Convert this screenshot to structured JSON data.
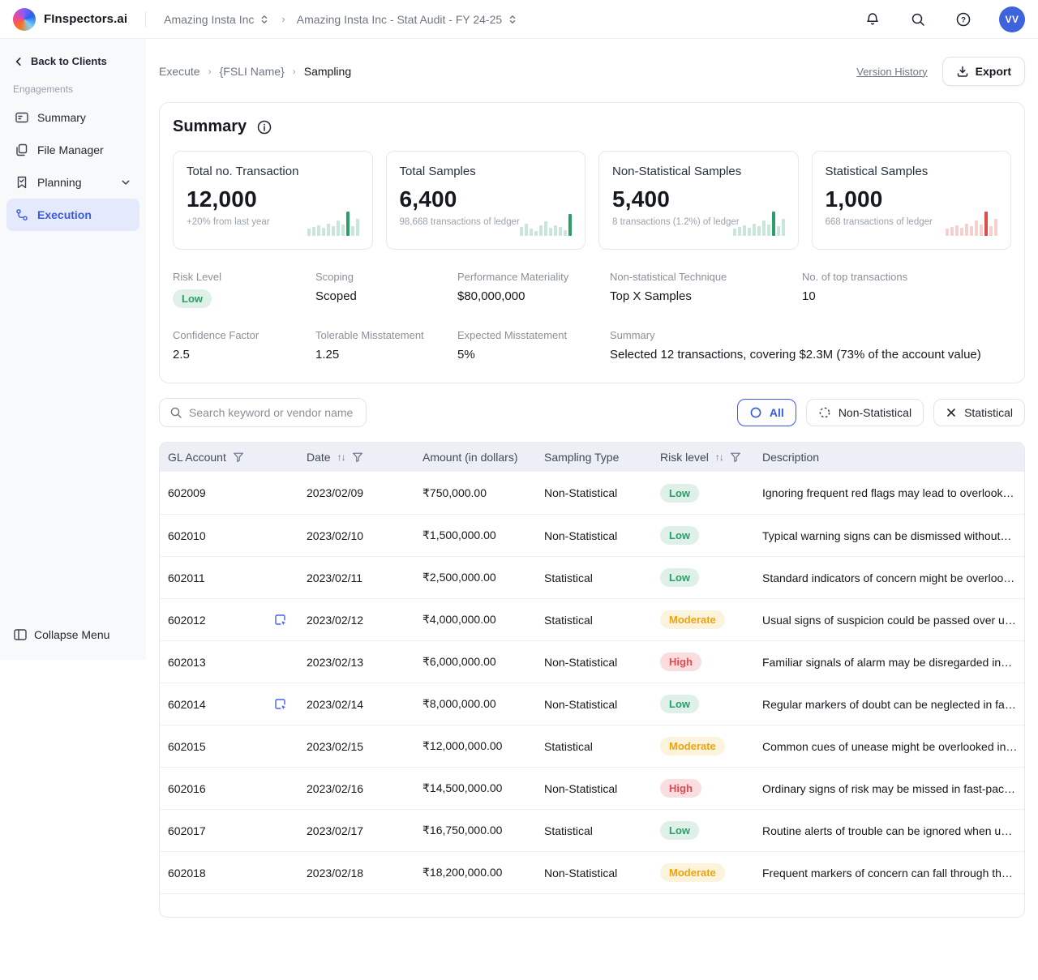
{
  "topbar": {
    "brand": "FInspectors.ai",
    "client": "Amazing Insta Inc",
    "engagement": "Amazing Insta Inc - Stat Audit - FY 24-25",
    "avatar": "VV"
  },
  "sidebar": {
    "back": "Back to Clients",
    "section": "Engagements",
    "items": [
      {
        "label": "Summary"
      },
      {
        "label": "File Manager"
      },
      {
        "label": "Planning"
      },
      {
        "label": "Execution"
      }
    ],
    "collapse": "Collapse Menu"
  },
  "page": {
    "breadcrumb": {
      "level1": "Execute",
      "level2": "{FSLI Name}",
      "level3": "Sampling"
    },
    "version_history": "Version History",
    "export": "Export"
  },
  "summary": {
    "title": "Summary",
    "cards": [
      {
        "title": "Total no. Transaction",
        "value": "12,000",
        "subtext": "+20% from last year",
        "spark": {
          "values": [
            9,
            11,
            13,
            10,
            15,
            12,
            19,
            14,
            30,
            12,
            21
          ],
          "highlight_index": 8,
          "bar_color": "#C9E7D8",
          "highlight_color": "#2E9E68"
        }
      },
      {
        "title": "Total Samples",
        "value": "6,400",
        "subtext": "98,668 transactions of ledger",
        "spark": {
          "values": [
            11,
            15,
            9,
            6,
            13,
            18,
            10,
            13,
            11,
            7,
            27
          ],
          "highlight_index": 10,
          "bar_color": "#C9E7D8",
          "highlight_color": "#2E9E68"
        }
      },
      {
        "title": "Non-Statistical Samples",
        "value": "5,400",
        "subtext": "8 transactions (1.2%) of ledger",
        "spark": {
          "values": [
            9,
            11,
            13,
            10,
            15,
            12,
            19,
            14,
            30,
            12,
            21
          ],
          "highlight_index": 8,
          "bar_color": "#C9E7D8",
          "highlight_color": "#2E9E68"
        }
      },
      {
        "title": "Statistical Samples",
        "value": "1,000",
        "subtext": "668 transactions of ledger",
        "spark": {
          "values": [
            9,
            11,
            13,
            10,
            15,
            12,
            19,
            14,
            30,
            12,
            21
          ],
          "highlight_index": 8,
          "bar_color": "#F6CFCF",
          "highlight_color": "#E04B4B"
        }
      }
    ],
    "stats": [
      {
        "label": "Risk Level",
        "value": "Low",
        "badge": "low"
      },
      {
        "label": "Scoping",
        "value": "Scoped"
      },
      {
        "label": "Performance Materiality",
        "value": "$80,000,000"
      },
      {
        "label": "Non-statistical Technique",
        "value": "Top X Samples"
      },
      {
        "label": "No. of top transactions",
        "value": "10"
      },
      {
        "label": "Confidence Factor",
        "value": "2.5"
      },
      {
        "label": "Tolerable Misstatement",
        "value": "1.25"
      },
      {
        "label": "Expected Misstatement",
        "value": "5%"
      },
      {
        "label": "Summary",
        "value": "Selected 12 transactions, covering $2.3M (73% of the account value)"
      }
    ]
  },
  "filters": {
    "search_placeholder": "Search keyword or vendor name",
    "options": [
      {
        "label": "All",
        "active": true
      },
      {
        "label": "Non-Statistical",
        "active": false
      },
      {
        "label": "Statistical",
        "active": false
      }
    ]
  },
  "table": {
    "columns": [
      "GL Account",
      "Date",
      "Amount (in dollars)",
      "Sampling Type",
      "Risk level",
      "Description"
    ],
    "rows": [
      {
        "gl_account": "602009",
        "has_note": false,
        "date": "2023/02/09",
        "amount": "₹750,000.00",
        "sampling_type": "Non-Statistical",
        "risk_level": "Low",
        "description": "Ignoring frequent red flags may lead to overlook…"
      },
      {
        "gl_account": "602010",
        "has_note": false,
        "date": "2023/02/10",
        "amount": "₹1,500,000.00",
        "sampling_type": "Non-Statistical",
        "risk_level": "Low",
        "description": "Typical warning signs can be dismissed without…"
      },
      {
        "gl_account": "602011",
        "has_note": false,
        "date": "2023/02/11",
        "amount": "₹2,500,000.00",
        "sampling_type": "Statistical",
        "risk_level": "Low",
        "description": "Standard indicators of concern might be overloo…"
      },
      {
        "gl_account": "602012",
        "has_note": true,
        "date": "2023/02/12",
        "amount": "₹4,000,000.00",
        "sampling_type": "Statistical",
        "risk_level": "Moderate",
        "description": "Usual signs of suspicion could be passed over u…"
      },
      {
        "gl_account": "602013",
        "has_note": false,
        "date": "2023/02/13",
        "amount": "₹6,000,000.00",
        "sampling_type": "Non-Statistical",
        "risk_level": "High",
        "description": "Familiar signals of alarm may be disregarded in…"
      },
      {
        "gl_account": "602014",
        "has_note": true,
        "date": "2023/02/14",
        "amount": "₹8,000,000.00",
        "sampling_type": "Non-Statistical",
        "risk_level": "Low",
        "description": "Regular markers of doubt can be neglected in fa…"
      },
      {
        "gl_account": "602015",
        "has_note": false,
        "date": "2023/02/15",
        "amount": "₹12,000,000.00",
        "sampling_type": "Statistical",
        "risk_level": "Moderate",
        "description": "Common cues of unease might be overlooked in…"
      },
      {
        "gl_account": "602016",
        "has_note": false,
        "date": "2023/02/16",
        "amount": "₹14,500,000.00",
        "sampling_type": "Non-Statistical",
        "risk_level": "High",
        "description": "Ordinary signs of risk may be missed in fast-pac…"
      },
      {
        "gl_account": "602017",
        "has_note": false,
        "date": "2023/02/17",
        "amount": "₹16,750,000.00",
        "sampling_type": "Statistical",
        "risk_level": "Low",
        "description": "Routine alerts of trouble can be ignored when u…"
      },
      {
        "gl_account": "602018",
        "has_note": false,
        "date": "2023/02/18",
        "amount": "₹18,200,000.00",
        "sampling_type": "Non-Statistical",
        "risk_level": "Moderate",
        "description": "Frequent markers of concern can fall through th…"
      }
    ]
  },
  "colors": {
    "accent": "#3A5BD9",
    "avatar_bg": "#3D63DD",
    "risk_low": "#2A9E68",
    "risk_moderate": "#EFA30C",
    "risk_high": "#E5484D",
    "spark_green": "#2E9E68",
    "spark_red": "#E04B4B"
  }
}
